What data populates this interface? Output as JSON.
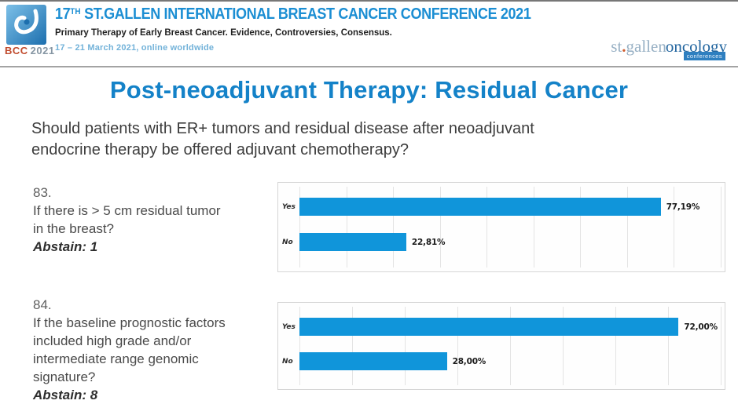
{
  "header": {
    "logo_caption": {
      "bcc": "BCC",
      "year": "2021"
    },
    "title_num": "17",
    "title_sup": "TH",
    "title_rest": " ST.GALLEN INTERNATIONAL BREAST CANCER CONFERENCE 2021",
    "subtitle": "Primary Therapy of Early Breast Cancer. Evidence, Controversies, Consensus.",
    "dates": "17 – 21 March 2021, online worldwide",
    "brand": {
      "part1": "st",
      "dot": ".",
      "part2": "gallen",
      "part3": "oncology",
      "badge": "conferences"
    }
  },
  "slide": {
    "title": "Post-neoadjuvant Therapy: Residual Cancer",
    "question_line1": "Should patients with ER+ tumors and residual disease after neoadjuvant",
    "question_line2": "endocrine therapy be offered adjuvant chemotherapy?"
  },
  "questions": [
    {
      "number": "83.",
      "lines": [
        "If there is > 5 cm residual tumor",
        "in the breast?"
      ],
      "abstain": "Abstain: 1"
    },
    {
      "number": "84.",
      "lines": [
        "If the baseline prognostic factors",
        "included high grade and/or",
        "intermediate range genomic",
        "signature?"
      ],
      "abstain": "Abstain: 8"
    }
  ],
  "chart_data": [
    {
      "type": "bar",
      "orientation": "horizontal",
      "question": "83. If there is > 5 cm residual tumor in the breast?",
      "categories": [
        "Yes",
        "No"
      ],
      "values": [
        77.19,
        22.81
      ],
      "labels": [
        "77,19%",
        "22,81%"
      ],
      "xlim": [
        0,
        90
      ],
      "gridline_step": 10,
      "grid": "on",
      "bar_color": "#1095da"
    },
    {
      "type": "bar",
      "orientation": "horizontal",
      "question": "84. If the baseline prognostic factors included high grade and/or intermediate range genomic signature?",
      "categories": [
        "Yes",
        "No"
      ],
      "values": [
        72.0,
        28.0
      ],
      "labels": [
        "72,00%",
        "28,00%"
      ],
      "xlim": [
        0,
        80
      ],
      "gridline_step": 10,
      "grid": "on",
      "bar_color": "#1095da"
    }
  ],
  "colors": {
    "bar_blue": "#1095da",
    "header_blue": "#1b8ed3",
    "slide_title_blue": "#1482c8",
    "date_blue": "#72b2d9",
    "bcc_red": "#c04a2c",
    "brand_gray_blue": "#97b0c4",
    "brand_dark_blue": "#22659f",
    "badge_blue": "#2e7fc0"
  }
}
